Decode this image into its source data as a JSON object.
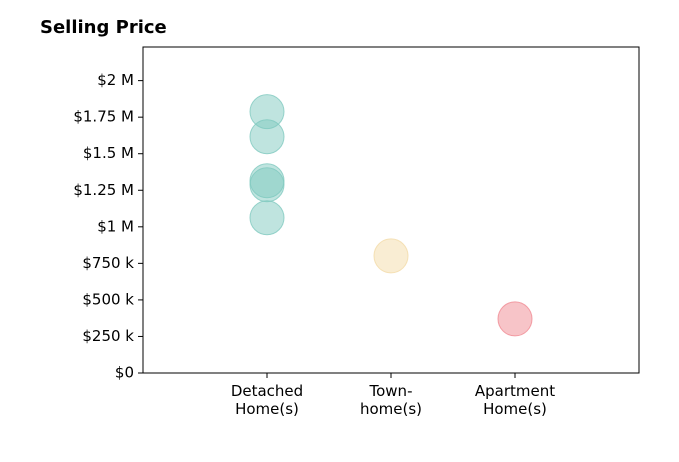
{
  "chart_data": {
    "type": "strip",
    "title": "Selling Price",
    "categories": [
      "Detached Home(s)",
      "Town-home(s)",
      "Apartment Home(s)"
    ],
    "values": [
      [
        1788000,
        1616000,
        1315000,
        1288000,
        1062000
      ],
      [
        801000
      ],
      [
        370000
      ]
    ],
    "colors": [
      "#7fc9bf",
      "#f3dba8",
      "#f08a92"
    ],
    "ylim": [
      0,
      2230000
    ],
    "yticks": [
      {
        "value": 0,
        "label": "$0"
      },
      {
        "value": 250000,
        "label": "$250 k"
      },
      {
        "value": 500000,
        "label": "$500 k"
      },
      {
        "value": 750000,
        "label": "$750 k"
      },
      {
        "value": 1000000,
        "label": "$1 M"
      },
      {
        "value": 1250000,
        "label": "$1.25 M"
      },
      {
        "value": 1500000,
        "label": "$1.5 M"
      },
      {
        "value": 1750000,
        "label": "$1.75 M"
      },
      {
        "value": 2000000,
        "label": "$2 M"
      }
    ],
    "grid": false
  }
}
